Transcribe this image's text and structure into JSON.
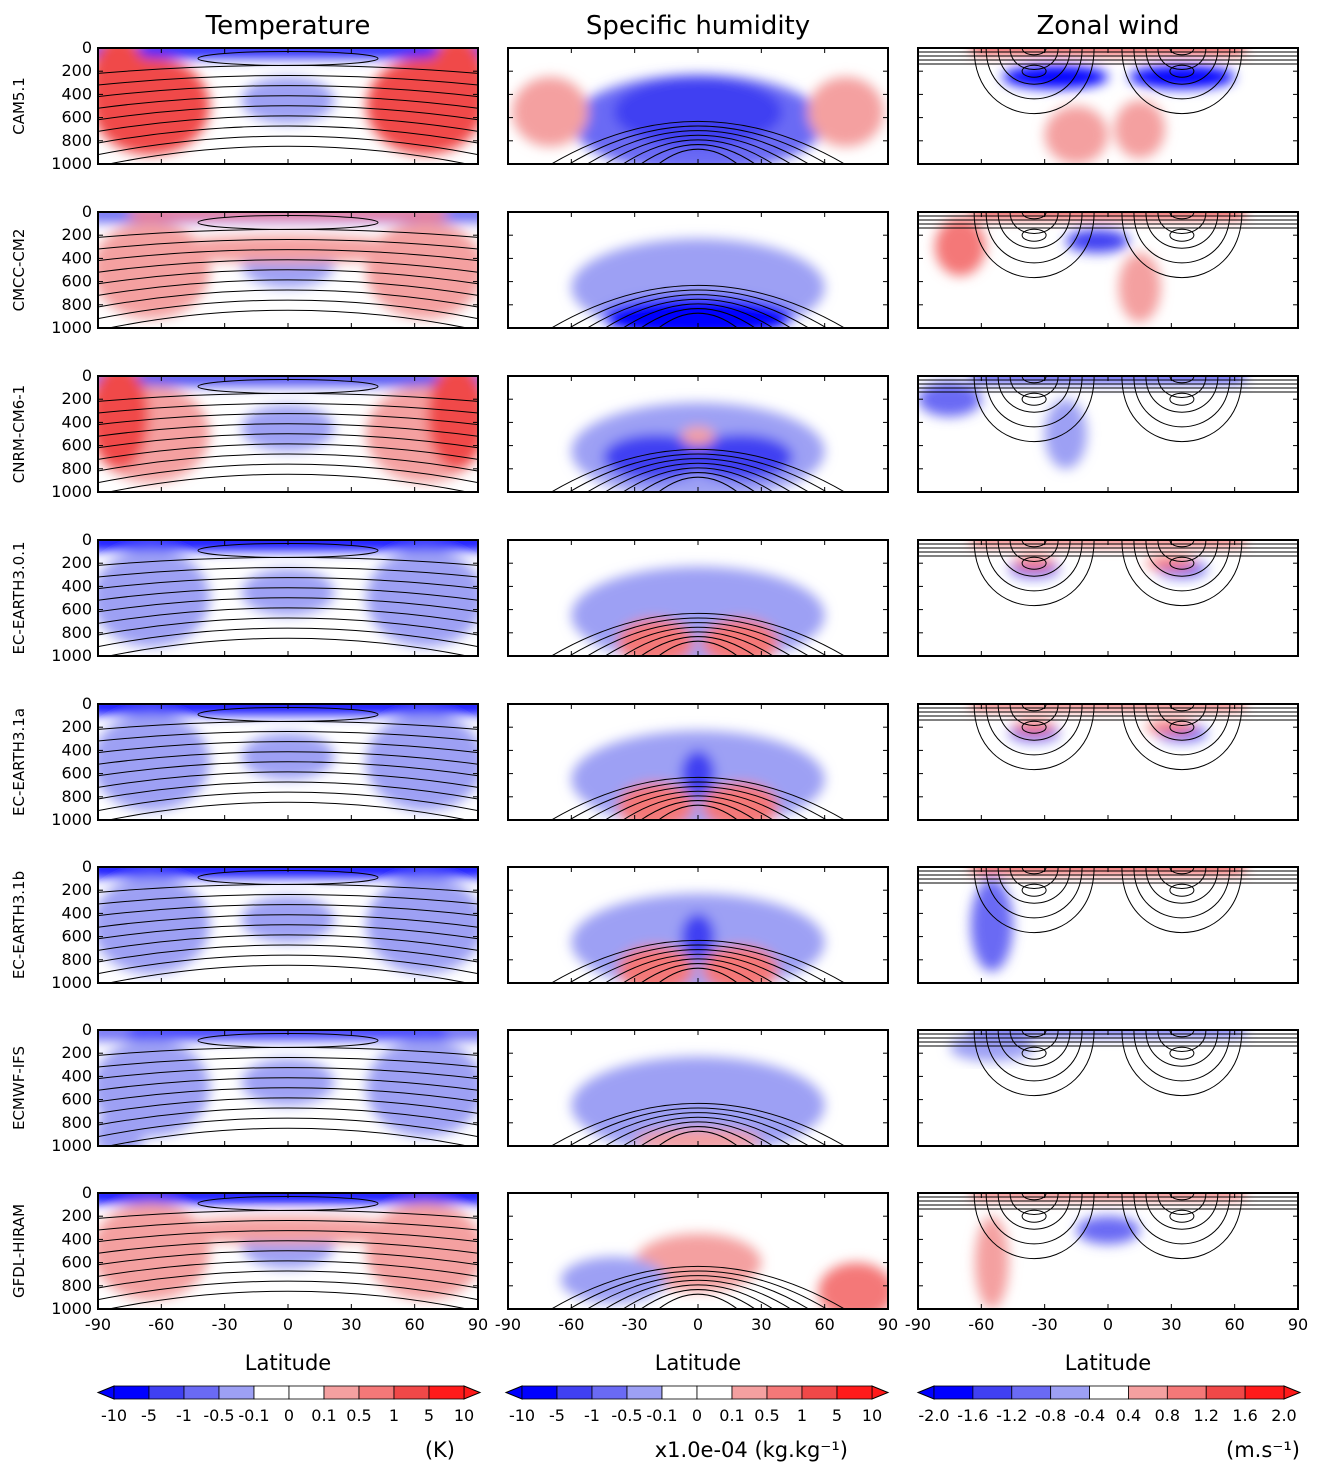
{
  "figure": {
    "column_titles": [
      "Temperature",
      "Specific humidity",
      "Zonal wind"
    ],
    "row_labels": [
      "CAM5.1",
      "CMCC-CM2",
      "CNRM-CM6-1",
      "EC-EARTH3.0.1",
      "EC-EARTH3.1a",
      "EC-EARTH3.1b",
      "ECMWF-IFS",
      "GFDL-HIRAM"
    ],
    "y_ticks": [
      "0",
      "200",
      "400",
      "600",
      "800",
      "1000"
    ],
    "x_ticks": [
      "-90",
      "-60",
      "-30",
      "0",
      "30",
      "60",
      "90"
    ],
    "x_label": "Latitude",
    "colorbars": [
      {
        "ticks": [
          "-10",
          "-5",
          "-1",
          "-0.5",
          "-0.1",
          "0",
          "0.1",
          "0.5",
          "1",
          "5",
          "10"
        ],
        "unit": "(K)"
      },
      {
        "ticks": [
          "-10",
          "-5",
          "-1",
          "-0.5",
          "-0.1",
          "0",
          "0.1",
          "0.5",
          "1",
          "5",
          "10"
        ],
        "unit": "x1.0e-04 (kg.kg⁻¹)"
      },
      {
        "ticks": [
          "-2.0",
          "-1.6",
          "-1.2",
          "-0.8",
          "-0.4",
          "0.4",
          "0.8",
          "1.2",
          "1.6",
          "2.0"
        ],
        "unit": "(m.s⁻¹)"
      }
    ],
    "palette": [
      "#0000ff",
      "#4040f2",
      "#6a6af4",
      "#9da0f4",
      "#ffffff",
      "#f4a0a0",
      "#f47878",
      "#f04848",
      "#ff1a1a"
    ]
  },
  "chart_data": {
    "type": "heatmap",
    "description_of_grid": "8 models x 3 variables; latitude-pressure cross sections (lat -90..90, pressure 0..1000 hPa) with filled difference contours and black climatology contours",
    "x": {
      "label": "Latitude",
      "range": [
        -90,
        90
      ],
      "ticks": [
        -90,
        -60,
        -30,
        0,
        30,
        60,
        90
      ]
    },
    "y": {
      "range": [
        0,
        1000
      ],
      "ticks": [
        0,
        200,
        400,
        600,
        800,
        1000
      ],
      "inverted": true
    },
    "variables": [
      {
        "name": "Temperature",
        "levels": [
          -10,
          -5,
          -1,
          -0.5,
          -0.1,
          0,
          0.1,
          0.5,
          1,
          5,
          10
        ],
        "unit": "(K)"
      },
      {
        "name": "Specific humidity",
        "levels": [
          -10,
          -5,
          -1,
          -0.5,
          -0.1,
          0,
          0.1,
          0.5,
          1,
          5,
          10
        ],
        "unit": "x1.0e-04 (kg.kg⁻¹)"
      },
      {
        "name": "Zonal wind",
        "levels": [
          -2.0,
          -1.6,
          -1.2,
          -0.8,
          -0.4,
          0.4,
          0.8,
          1.2,
          1.6,
          2.0
        ],
        "unit": "(m.s⁻¹)"
      }
    ],
    "models": [
      "CAM5.1",
      "CMCC-CM2",
      "CNRM-CM6-1",
      "EC-EARTH3.0.1",
      "EC-EARTH3.1a",
      "EC-EARTH3.1b",
      "ECMWF-IFS",
      "GFDL-HIRAM"
    ]
  }
}
